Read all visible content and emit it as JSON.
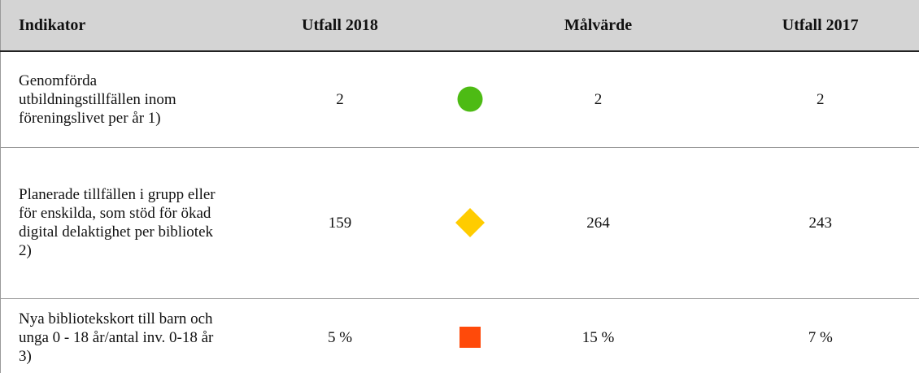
{
  "table": {
    "header": [
      "Indikator",
      "Utfall 2018",
      "Målvärde",
      "Utfall 2017"
    ],
    "rows": [
      [
        "Genomförda utbildningstillfällen inom föreningslivet per år 1)",
        "2",
        "2",
        "2"
      ],
      [
        "Planerade tillfällen i grupp eller för enskilda, som stöd för ökad digital delaktighet per bibliotek 2)",
        "159",
        "264",
        "243"
      ],
      [
        "Nya bibliotekskort till barn och unga 0 -  18 år/antal inv. 0-18 år 3)",
        "5 %",
        "15 %",
        "7 %"
      ]
    ]
  }
}
